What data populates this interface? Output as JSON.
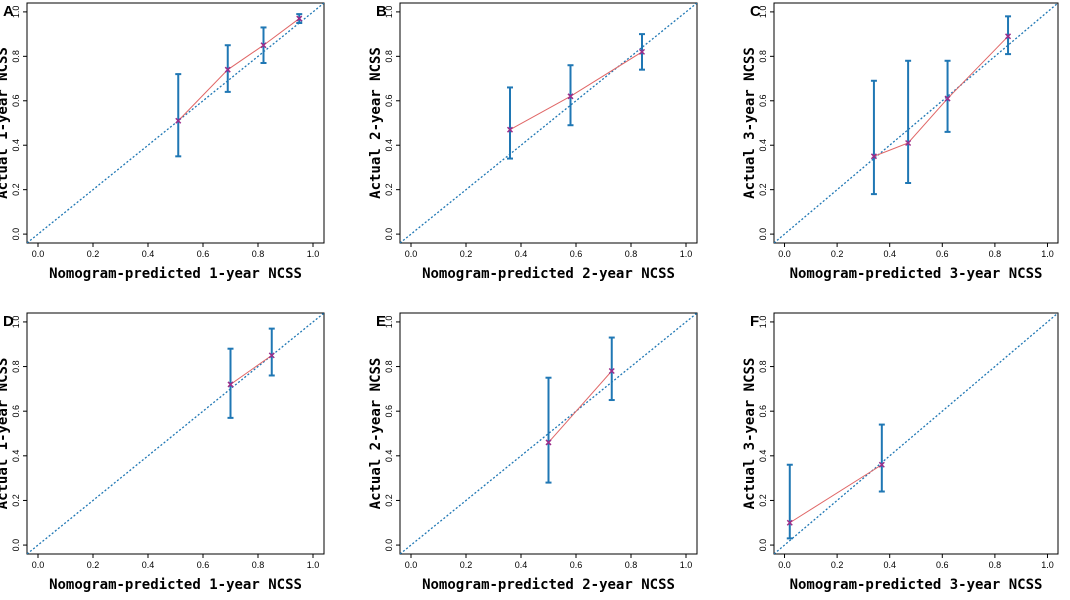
{
  "chart_data": [
    {
      "panel": "A",
      "type": "scatter",
      "xlabel": "Nomogram-predicted 1-year NCSS",
      "ylabel": "Actual 1-year NCSS",
      "xlim": [
        0.0,
        1.0
      ],
      "ylim": [
        0.0,
        1.0
      ],
      "x_ticks": [
        "0.0",
        "0.2",
        "0.4",
        "0.6",
        "0.8",
        "1.0"
      ],
      "y_ticks": [
        "0.0",
        "0.2",
        "0.4",
        "0.6",
        "0.8",
        "1.0"
      ],
      "points": [
        {
          "x": 0.51,
          "y": 0.51,
          "lower": 0.35,
          "upper": 0.72
        },
        {
          "x": 0.69,
          "y": 0.74,
          "lower": 0.64,
          "upper": 0.85
        },
        {
          "x": 0.82,
          "y": 0.85,
          "lower": 0.77,
          "upper": 0.93
        },
        {
          "x": 0.95,
          "y": 0.97,
          "lower": 0.95,
          "upper": 0.99
        }
      ],
      "series_colors": {
        "observed_line": "#e06666",
        "error_bar": "#1f77b4",
        "ideal_line": "#1f77b4",
        "marker": "#9b2d8a"
      }
    },
    {
      "panel": "B",
      "type": "scatter",
      "xlabel": "Nomogram-predicted 2-year NCSS",
      "ylabel": "Actual 2-year NCSS",
      "xlim": [
        0.0,
        1.0
      ],
      "ylim": [
        0.0,
        1.0
      ],
      "x_ticks": [
        "0.0",
        "0.2",
        "0.4",
        "0.6",
        "0.8",
        "1.0"
      ],
      "y_ticks": [
        "0.0",
        "0.2",
        "0.4",
        "0.6",
        "0.8",
        "1.0"
      ],
      "points": [
        {
          "x": 0.36,
          "y": 0.47,
          "lower": 0.34,
          "upper": 0.66
        },
        {
          "x": 0.58,
          "y": 0.62,
          "lower": 0.49,
          "upper": 0.76
        },
        {
          "x": 0.84,
          "y": 0.82,
          "lower": 0.74,
          "upper": 0.9
        }
      ],
      "series_colors": {
        "observed_line": "#e06666",
        "error_bar": "#1f77b4",
        "ideal_line": "#1f77b4",
        "marker": "#9b2d8a"
      }
    },
    {
      "panel": "C",
      "type": "scatter",
      "xlabel": "Nomogram-predicted 3-year NCSS",
      "ylabel": "Actual 3-year NCSS",
      "xlim": [
        0.0,
        1.0
      ],
      "ylim": [
        0.0,
        1.0
      ],
      "x_ticks": [
        "0.0",
        "0.2",
        "0.4",
        "0.6",
        "0.8",
        "1.0"
      ],
      "y_ticks": [
        "0.0",
        "0.2",
        "0.4",
        "0.6",
        "0.8",
        "1.0"
      ],
      "points": [
        {
          "x": 0.34,
          "y": 0.35,
          "lower": 0.18,
          "upper": 0.69
        },
        {
          "x": 0.47,
          "y": 0.41,
          "lower": 0.23,
          "upper": 0.78
        },
        {
          "x": 0.62,
          "y": 0.61,
          "lower": 0.46,
          "upper": 0.78
        },
        {
          "x": 0.85,
          "y": 0.89,
          "lower": 0.81,
          "upper": 0.98
        }
      ],
      "series_colors": {
        "observed_line": "#e06666",
        "error_bar": "#1f77b4",
        "ideal_line": "#1f77b4",
        "marker": "#9b2d8a"
      }
    },
    {
      "panel": "D",
      "type": "scatter",
      "xlabel": "Nomogram-predicted 1-year NCSS",
      "ylabel": "Actual 1-year NCSS",
      "xlim": [
        0.0,
        1.0
      ],
      "ylim": [
        0.0,
        1.0
      ],
      "x_ticks": [
        "0.0",
        "0.2",
        "0.4",
        "0.6",
        "0.8",
        "1.0"
      ],
      "y_ticks": [
        "0.0",
        "0.2",
        "0.4",
        "0.6",
        "0.8",
        "1.0"
      ],
      "points": [
        {
          "x": 0.7,
          "y": 0.72,
          "lower": 0.57,
          "upper": 0.88
        },
        {
          "x": 0.85,
          "y": 0.85,
          "lower": 0.76,
          "upper": 0.97
        }
      ],
      "series_colors": {
        "observed_line": "#e06666",
        "error_bar": "#1f77b4",
        "ideal_line": "#1f77b4",
        "marker": "#9b2d8a"
      }
    },
    {
      "panel": "E",
      "type": "scatter",
      "xlabel": "Nomogram-predicted 2-year NCSS",
      "ylabel": "Actual 2-year NCSS",
      "xlim": [
        0.0,
        1.0
      ],
      "ylim": [
        0.0,
        1.0
      ],
      "x_ticks": [
        "0.0",
        "0.2",
        "0.4",
        "0.6",
        "0.8",
        "1.0"
      ],
      "y_ticks": [
        "0.0",
        "0.2",
        "0.4",
        "0.6",
        "0.8",
        "1.0"
      ],
      "points": [
        {
          "x": 0.5,
          "y": 0.46,
          "lower": 0.28,
          "upper": 0.75
        },
        {
          "x": 0.73,
          "y": 0.78,
          "lower": 0.65,
          "upper": 0.93
        }
      ],
      "series_colors": {
        "observed_line": "#e06666",
        "error_bar": "#1f77b4",
        "ideal_line": "#1f77b4",
        "marker": "#9b2d8a"
      }
    },
    {
      "panel": "F",
      "type": "scatter",
      "xlabel": "Nomogram-predicted 3-year NCSS",
      "ylabel": "Actual 3-year NCSS",
      "xlim": [
        0.0,
        1.0
      ],
      "ylim": [
        0.0,
        1.0
      ],
      "x_ticks": [
        "0.0",
        "0.2",
        "0.4",
        "0.6",
        "0.8",
        "1.0"
      ],
      "y_ticks": [
        "0.0",
        "0.2",
        "0.4",
        "0.6",
        "0.8",
        "1.0"
      ],
      "points": [
        {
          "x": 0.02,
          "y": 0.1,
          "lower": 0.03,
          "upper": 0.36
        },
        {
          "x": 0.37,
          "y": 0.36,
          "lower": 0.24,
          "upper": 0.54
        }
      ],
      "series_colors": {
        "observed_line": "#e06666",
        "error_bar": "#1f77b4",
        "ideal_line": "#1f77b4",
        "marker": "#9b2d8a"
      }
    }
  ]
}
